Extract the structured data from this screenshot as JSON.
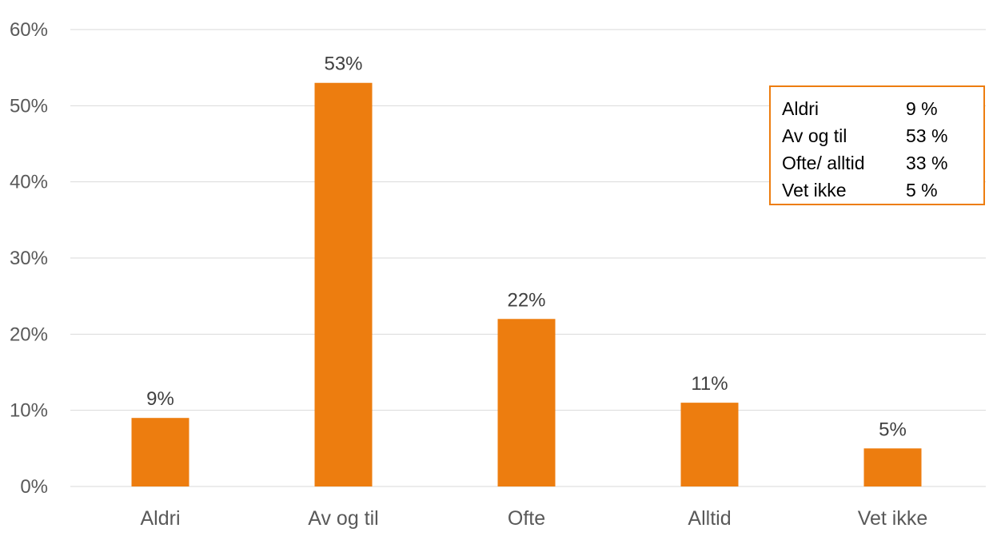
{
  "colors": {
    "bar": "#ED7D0F",
    "grid": "#D9D9D9",
    "tick_text": "#595959",
    "data_label_text": "#404040",
    "box_border": "#ED7D0F"
  },
  "chart_data": {
    "type": "bar",
    "categories": [
      "Aldri",
      "Av og til",
      "Ofte",
      "Alltid",
      "Vet ikke"
    ],
    "values": [
      9,
      53,
      22,
      11,
      5
    ],
    "data_labels": [
      "9%",
      "53%",
      "22%",
      "11%",
      "5%"
    ],
    "ylim": [
      0,
      60
    ],
    "yticks": [
      0,
      10,
      20,
      30,
      40,
      50,
      60
    ],
    "ytick_labels": [
      "0%",
      "10%",
      "20%",
      "30%",
      "40%",
      "50%",
      "60%"
    ],
    "grid": true,
    "legend": "none"
  },
  "summary_box": {
    "rows": [
      {
        "label": "Aldri",
        "value": "9 %"
      },
      {
        "label": "Av og til",
        "value": "53 %"
      },
      {
        "label": "Ofte/ alltid",
        "value": "33 %"
      },
      {
        "label": "Vet ikke",
        "value": "5 %"
      }
    ]
  }
}
